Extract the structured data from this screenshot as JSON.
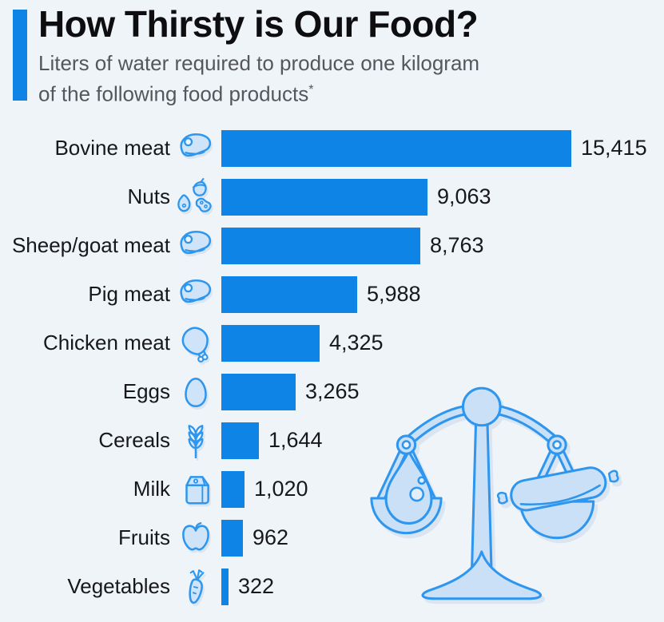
{
  "header": {
    "title": "How Thirsty is Our Food?",
    "subtitle_line1": "Liters of water required to produce one kilogram",
    "subtitle_line2": "of the following food products",
    "footnote_marker": "*"
  },
  "colors": {
    "background": "#eff4f9",
    "accent": "#0d84e6",
    "bar": "#0d84e6",
    "icon_stroke": "#2d96ee",
    "icon_fill": "#cfe4f8",
    "title_text": "#0e0e10",
    "subtitle_text": "#55575c",
    "label_text": "#17181a"
  },
  "chart_data": {
    "type": "bar",
    "orientation": "horizontal",
    "title": "How Thirsty is Our Food?",
    "subtitle": "Liters of water required to produce one kilogram of the following food products*",
    "unit": "liters of water per kilogram",
    "categories": [
      "Bovine meat",
      "Nuts",
      "Sheep/goat meat",
      "Pig meat",
      "Chicken meat",
      "Eggs",
      "Cereals",
      "Milk",
      "Fruits",
      "Vegetables"
    ],
    "values": [
      15415,
      9063,
      8763,
      5988,
      4325,
      3265,
      1644,
      1020,
      962,
      322
    ],
    "value_labels": [
      "15,415",
      "9,063",
      "8,763",
      "5,988",
      "4,325",
      "3,265",
      "1,644",
      "1,020",
      "962",
      "322"
    ],
    "icons": [
      "steak-icon",
      "nuts-icon",
      "steak-icon",
      "steak-icon",
      "drumstick-icon",
      "egg-icon",
      "wheat-icon",
      "milk-carton-icon",
      "apple-icon",
      "carrot-icon"
    ],
    "xlim": [
      0,
      15415
    ],
    "grid": false,
    "legend": false,
    "bar_color": "#0d84e6"
  },
  "illustration": {
    "label": "balance scale weighing a water drop against a sausage"
  }
}
